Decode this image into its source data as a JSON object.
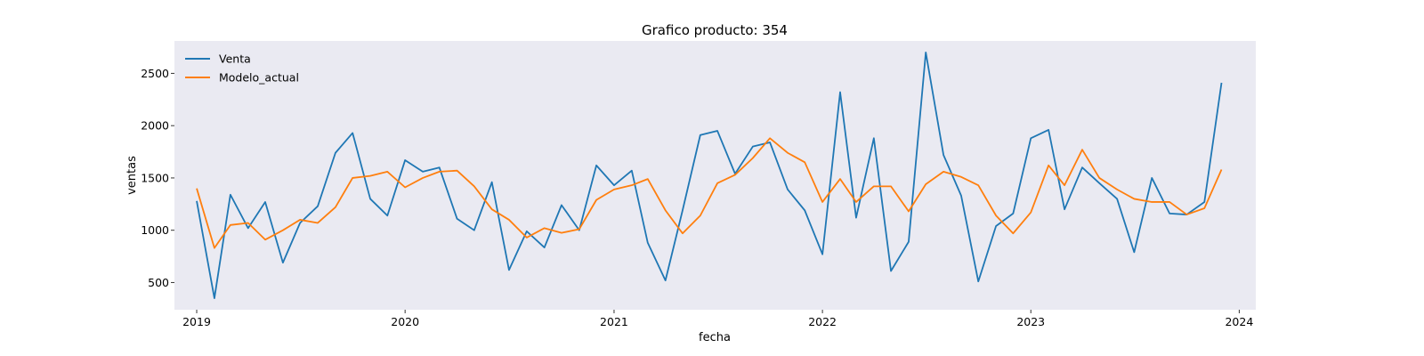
{
  "chart_data": {
    "type": "line",
    "title": "Grafico producto: 354",
    "xlabel": "fecha",
    "ylabel": "ventas",
    "x": [
      "2019-01",
      "2019-02",
      "2019-03",
      "2019-04",
      "2019-05",
      "2019-06",
      "2019-07",
      "2019-08",
      "2019-09",
      "2019-10",
      "2019-11",
      "2019-12",
      "2020-01",
      "2020-02",
      "2020-03",
      "2020-04",
      "2020-05",
      "2020-06",
      "2020-07",
      "2020-08",
      "2020-09",
      "2020-10",
      "2020-11",
      "2020-12",
      "2021-01",
      "2021-02",
      "2021-03",
      "2021-04",
      "2021-05",
      "2021-06",
      "2021-07",
      "2021-08",
      "2021-09",
      "2021-10",
      "2021-11",
      "2021-12",
      "2022-01",
      "2022-02",
      "2022-03",
      "2022-04",
      "2022-05",
      "2022-06",
      "2022-07",
      "2022-08",
      "2022-09",
      "2022-10",
      "2022-11",
      "2022-12",
      "2023-01",
      "2023-02",
      "2023-03",
      "2023-04",
      "2023-05",
      "2023-06",
      "2023-07",
      "2023-08",
      "2023-09",
      "2023-10",
      "2023-11",
      "2023-12"
    ],
    "series": [
      {
        "name": "Venta",
        "color": "#1f77b4",
        "values": [
          1280,
          350,
          1340,
          1020,
          1270,
          690,
          1070,
          1230,
          1740,
          1930,
          1300,
          1140,
          1670,
          1560,
          1600,
          1110,
          1000,
          1460,
          620,
          990,
          835,
          1240,
          1000,
          1620,
          1430,
          1570,
          880,
          520,
          1190,
          1910,
          1950,
          1540,
          1800,
          1840,
          1390,
          1190,
          770,
          2320,
          1120,
          1880,
          610,
          890,
          2700,
          1720,
          1330,
          510,
          1040,
          1160,
          1880,
          1960,
          1200,
          1600,
          1450,
          1300,
          790,
          1500,
          1160,
          1150,
          1270,
          2410
        ]
      },
      {
        "name": "Modelo_actual",
        "color": "#ff7f0e",
        "values": [
          1400,
          830,
          1050,
          1070,
          910,
          1000,
          1100,
          1070,
          1220,
          1500,
          1520,
          1560,
          1410,
          1500,
          1560,
          1570,
          1420,
          1200,
          1100,
          930,
          1020,
          975,
          1010,
          1290,
          1390,
          1430,
          1490,
          1190,
          970,
          1140,
          1450,
          1530,
          1690,
          1880,
          1740,
          1650,
          1270,
          1490,
          1270,
          1420,
          1420,
          1180,
          1440,
          1560,
          1510,
          1430,
          1140,
          970,
          1170,
          1620,
          1430,
          1770,
          1500,
          1390,
          1300,
          1270,
          1270,
          1150,
          1210,
          1580
        ]
      }
    ],
    "xticks": [
      "2019",
      "2020",
      "2021",
      "2022",
      "2023",
      "2024"
    ],
    "yticks": [
      500,
      1000,
      1500,
      2000,
      2500
    ],
    "ylim": [
      240,
      2810
    ],
    "xlim": [
      "2018-11-23",
      "2024-01-30"
    ],
    "grid": false,
    "legend_position": "top-left",
    "plot_background": "#eaeaf2"
  }
}
